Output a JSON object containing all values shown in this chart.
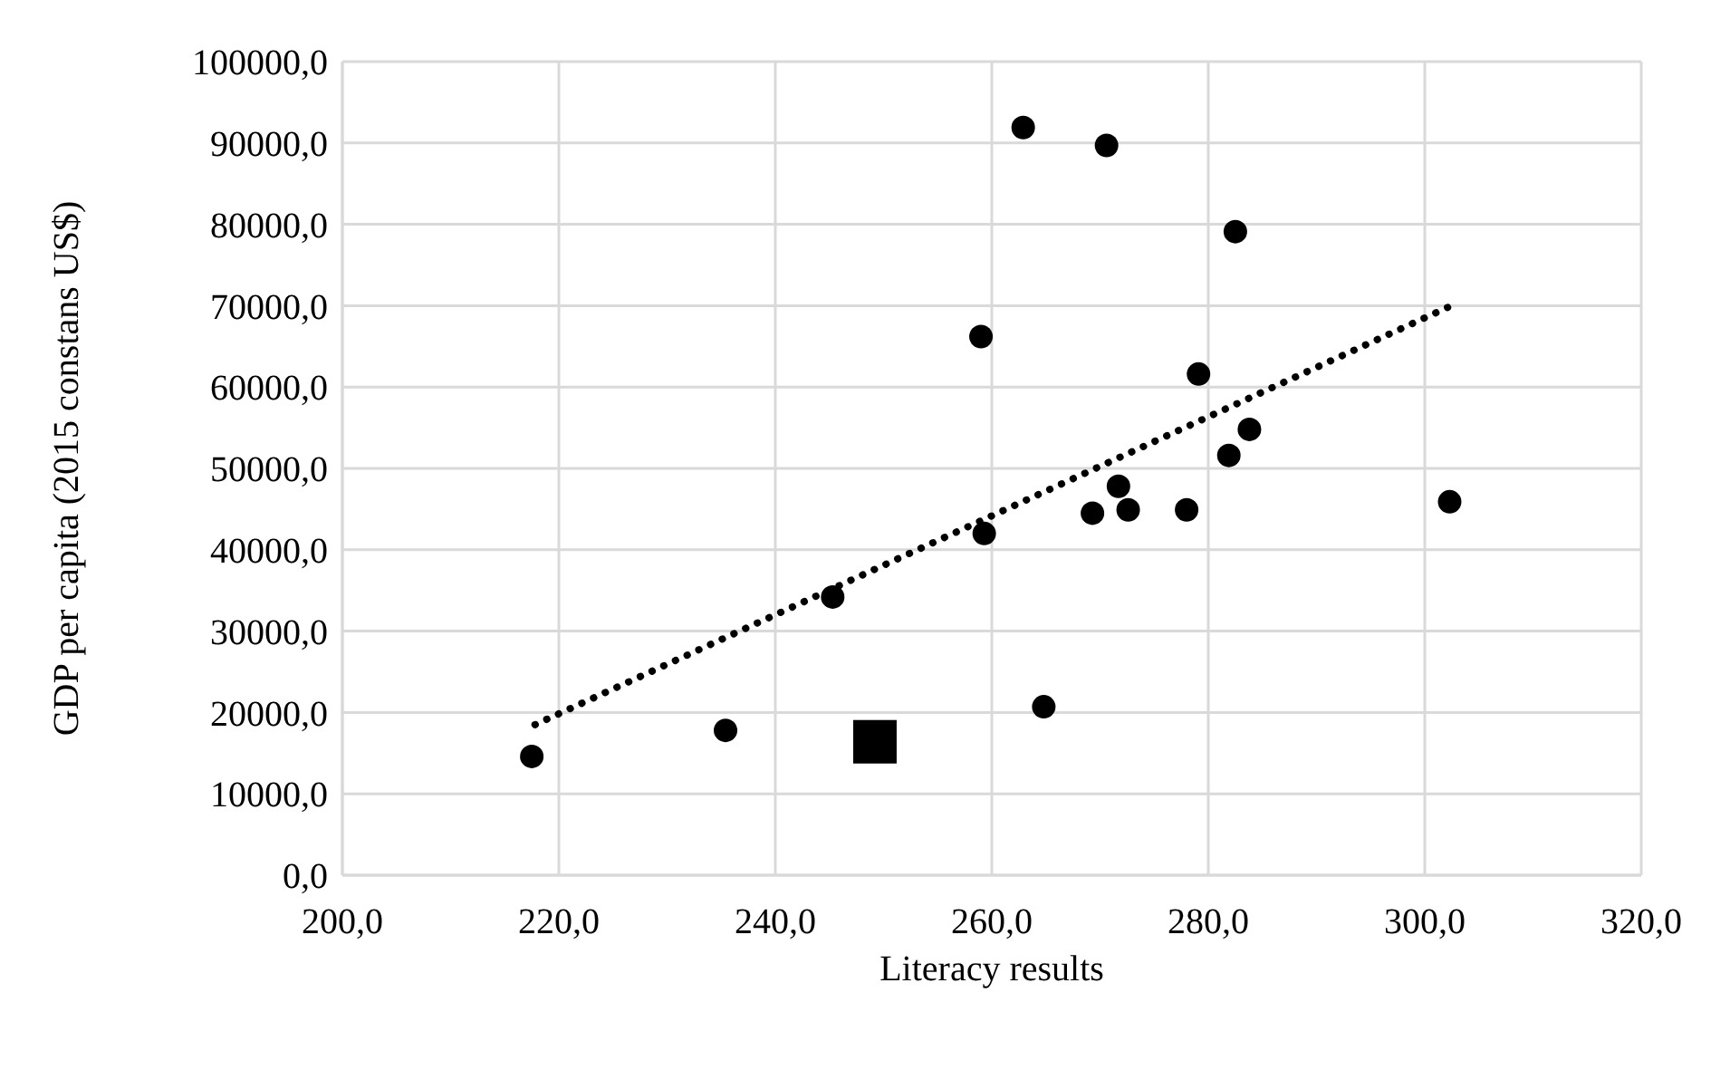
{
  "chart_data": {
    "type": "scatter",
    "xlabel": "Literacy results",
    "ylabel": "GDP per capita  (2015 constans US$)",
    "series": [
      {
        "color": "#000000",
        "marker": "circle",
        "x": [
          217.5,
          235.4,
          245.3,
          259.0,
          259.3,
          262.9,
          270.6,
          282.5,
          279.1,
          283.8,
          281.9,
          271.7,
          269.3,
          272.6,
          278.0,
          302.3,
          264.8
        ],
        "values": [
          14600,
          17800,
          34200,
          66200,
          42000,
          91900,
          89700,
          79100,
          61600,
          54800,
          51600,
          47800,
          44500,
          44900,
          44900,
          45900,
          20700
        ]
      },
      {
        "color": "#000000",
        "marker": "square",
        "x": [
          249.2
        ],
        "values": [
          16400
        ]
      },
      {
        "type": "line",
        "color": "#000000",
        "marker": "none",
        "line_style": "dotted",
        "x": [
          217.8,
          302.3
        ],
        "values": [
          18500,
          69900
        ]
      }
    ],
    "xlim": [
      200,
      320
    ],
    "xticks": [
      {
        "value": 200,
        "label": "200,0"
      },
      {
        "value": 220,
        "label": "220,0"
      },
      {
        "value": 240,
        "label": "240,0"
      },
      {
        "value": 260,
        "label": "260,0"
      },
      {
        "value": 280,
        "label": "280,0"
      },
      {
        "value": 300,
        "label": "300,0"
      },
      {
        "value": 320,
        "label": "320,0"
      }
    ],
    "ylim": [
      0,
      100000
    ],
    "yticks": [
      {
        "value": 0,
        "label": "0,0"
      },
      {
        "value": 10000,
        "label": "10000,0"
      },
      {
        "value": 20000,
        "label": "20000,0"
      },
      {
        "value": 30000,
        "label": "30000,0"
      },
      {
        "value": 40000,
        "label": "40000,0"
      },
      {
        "value": 50000,
        "label": "50000,0"
      },
      {
        "value": 60000,
        "label": "60000,0"
      },
      {
        "value": 70000,
        "label": "70000,0"
      },
      {
        "value": 80000,
        "label": "80000,0"
      },
      {
        "value": 90000,
        "label": "90000,0"
      },
      {
        "value": 100000,
        "label": "100000,0"
      }
    ],
    "grid": true,
    "legend": false
  }
}
